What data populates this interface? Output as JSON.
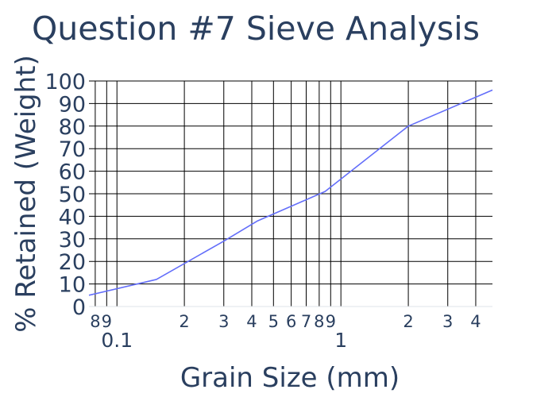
{
  "colors": {
    "line": "#636efa",
    "grid": "#000000",
    "text": "#2a3f5f",
    "background": "#ffffff"
  },
  "chart_data": {
    "type": "line",
    "title": "Question #7 Sieve Analysis",
    "xlabel": "Grain Size (mm)",
    "ylabel": "% Retained (Weight)",
    "x_scale": "log",
    "xlim": [
      0.075,
      4.75
    ],
    "ylim": [
      0,
      100
    ],
    "grid": true,
    "legend": "none",
    "x_ticks": [
      {
        "value": 0.08,
        "label": "8"
      },
      {
        "value": 0.09,
        "label": "9"
      },
      {
        "value": 0.2,
        "label": "2"
      },
      {
        "value": 0.3,
        "label": "3"
      },
      {
        "value": 0.4,
        "label": "4"
      },
      {
        "value": 0.5,
        "label": "5"
      },
      {
        "value": 0.6,
        "label": "6"
      },
      {
        "value": 0.7,
        "label": "7"
      },
      {
        "value": 0.8,
        "label": "8"
      },
      {
        "value": 0.9,
        "label": "9"
      },
      {
        "value": 2,
        "label": "2"
      },
      {
        "value": 3,
        "label": "3"
      },
      {
        "value": 4,
        "label": "4"
      }
    ],
    "x_major_ticks": [
      {
        "value": 0.1,
        "label": "0.1"
      },
      {
        "value": 1,
        "label": "1"
      }
    ],
    "y_ticks": [
      0,
      10,
      20,
      30,
      40,
      50,
      60,
      70,
      80,
      90,
      100
    ],
    "series": [
      {
        "x": [
          0.075,
          0.15,
          0.3,
          0.425,
          0.85,
          2.0,
          4.75
        ],
        "y": [
          5,
          12,
          29,
          38,
          51,
          80,
          96
        ]
      }
    ]
  }
}
